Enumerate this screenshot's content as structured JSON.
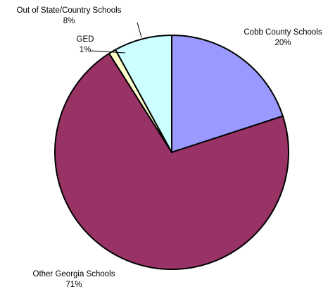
{
  "chart_data": {
    "type": "pie",
    "title": "",
    "slices": [
      {
        "label": "Cobb County Schools",
        "value": 20,
        "pct_text": "20%",
        "color": "#9999ff"
      },
      {
        "label": "Other Georgia Schools",
        "value": 71,
        "pct_text": "71%",
        "color": "#993366"
      },
      {
        "label": "GED",
        "value": 1,
        "pct_text": "1%",
        "color": "#ffffcc"
      },
      {
        "label": "Out of State/Country Schools",
        "value": 8,
        "pct_text": "8%",
        "color": "#ccffff"
      }
    ],
    "start_angle": "12 o'clock",
    "direction": "clockwise",
    "legend": "none"
  }
}
